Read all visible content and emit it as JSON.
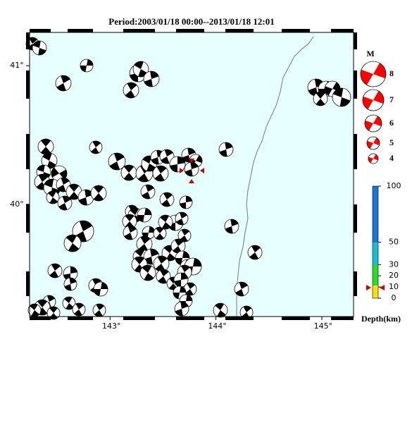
{
  "title": "Period:2003/01/18 00:00--2013/01/18 12:01",
  "map": {
    "lon_ticks": [
      {
        "value": 143,
        "label": "143°"
      },
      {
        "value": 144,
        "label": "144°"
      },
      {
        "value": 145,
        "label": "145°"
      }
    ],
    "lat_ticks": [
      {
        "value": 41,
        "label": "41°"
      },
      {
        "value": 40,
        "label": "40°"
      }
    ],
    "lonlim": [
      142.24,
      145.3
    ],
    "latlim": [
      41.24,
      39.19
    ]
  },
  "magnitude_legend": {
    "title": "M",
    "labels": [
      "8",
      "7",
      "6",
      "5",
      "4"
    ]
  },
  "depth_scale": {
    "title": "Depth(km)",
    "ticks": [
      100,
      50,
      30,
      20,
      10,
      0
    ],
    "lim": [
      0,
      100
    ]
  }
}
